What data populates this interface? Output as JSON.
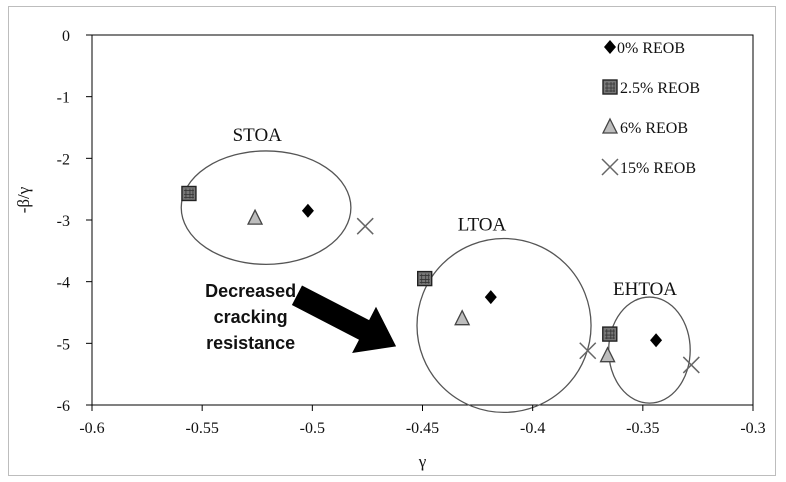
{
  "chart_data": {
    "type": "scatter",
    "xlabel": "γ",
    "ylabel": "-β/γ",
    "xlim": [
      -0.6,
      -0.3
    ],
    "ylim": [
      -6,
      0
    ],
    "x_ticks": [
      "-0.6",
      "-0.55",
      "-0.5",
      "-0.45",
      "-0.4",
      "-0.35",
      "-0.3"
    ],
    "y_ticks": [
      "0",
      "-1",
      "-2",
      "-3",
      "-4",
      "-5",
      "-6"
    ],
    "grid": false,
    "legend_position": "top-right",
    "series": [
      {
        "name": "0% REOB",
        "marker": "diamond",
        "color": "#000000",
        "points": [
          {
            "x": -0.502,
            "y": -2.85
          },
          {
            "x": -0.419,
            "y": -4.25
          },
          {
            "x": -0.344,
            "y": -4.95
          }
        ]
      },
      {
        "name": "2.5% REOB",
        "marker": "square",
        "color": "#555555",
        "points": [
          {
            "x": -0.556,
            "y": -2.57
          },
          {
            "x": -0.449,
            "y": -3.95
          },
          {
            "x": -0.365,
            "y": -4.85
          }
        ]
      },
      {
        "name": "6% REOB",
        "marker": "triangle",
        "color": "#555555",
        "points": [
          {
            "x": -0.526,
            "y": -2.97
          },
          {
            "x": -0.432,
            "y": -4.6
          },
          {
            "x": -0.366,
            "y": -5.2
          }
        ]
      },
      {
        "name": "15% REOB",
        "marker": "x",
        "color": "#666666",
        "points": [
          {
            "x": -0.476,
            "y": -3.1
          },
          {
            "x": -0.375,
            "y": -5.12
          },
          {
            "x": -0.328,
            "y": -5.35
          }
        ]
      }
    ],
    "groups": [
      {
        "label": "STOA",
        "cx": -0.521,
        "cy": -2.8,
        "rx": 0.0385,
        "ry": 0.92,
        "label_x": -0.525,
        "label_y": -1.72
      },
      {
        "label": "LTOA",
        "cx": -0.413,
        "cy": -4.71,
        "rx": 0.0395,
        "ry": 1.41,
        "label_x": -0.423,
        "label_y": -3.17
      },
      {
        "label": "EHTOA",
        "cx": -0.347,
        "cy": -5.11,
        "rx": 0.0185,
        "ry": 0.86,
        "label_x": -0.349,
        "label_y": -4.22
      }
    ],
    "annotation": {
      "lines": [
        "Decreased",
        "cracking",
        "resistance"
      ],
      "text_x": -0.528,
      "text_y": -4.25,
      "arrow_from": {
        "x": -0.507,
        "y": -4.22
      },
      "arrow_to": {
        "x": -0.462,
        "y": -5.05
      }
    }
  }
}
